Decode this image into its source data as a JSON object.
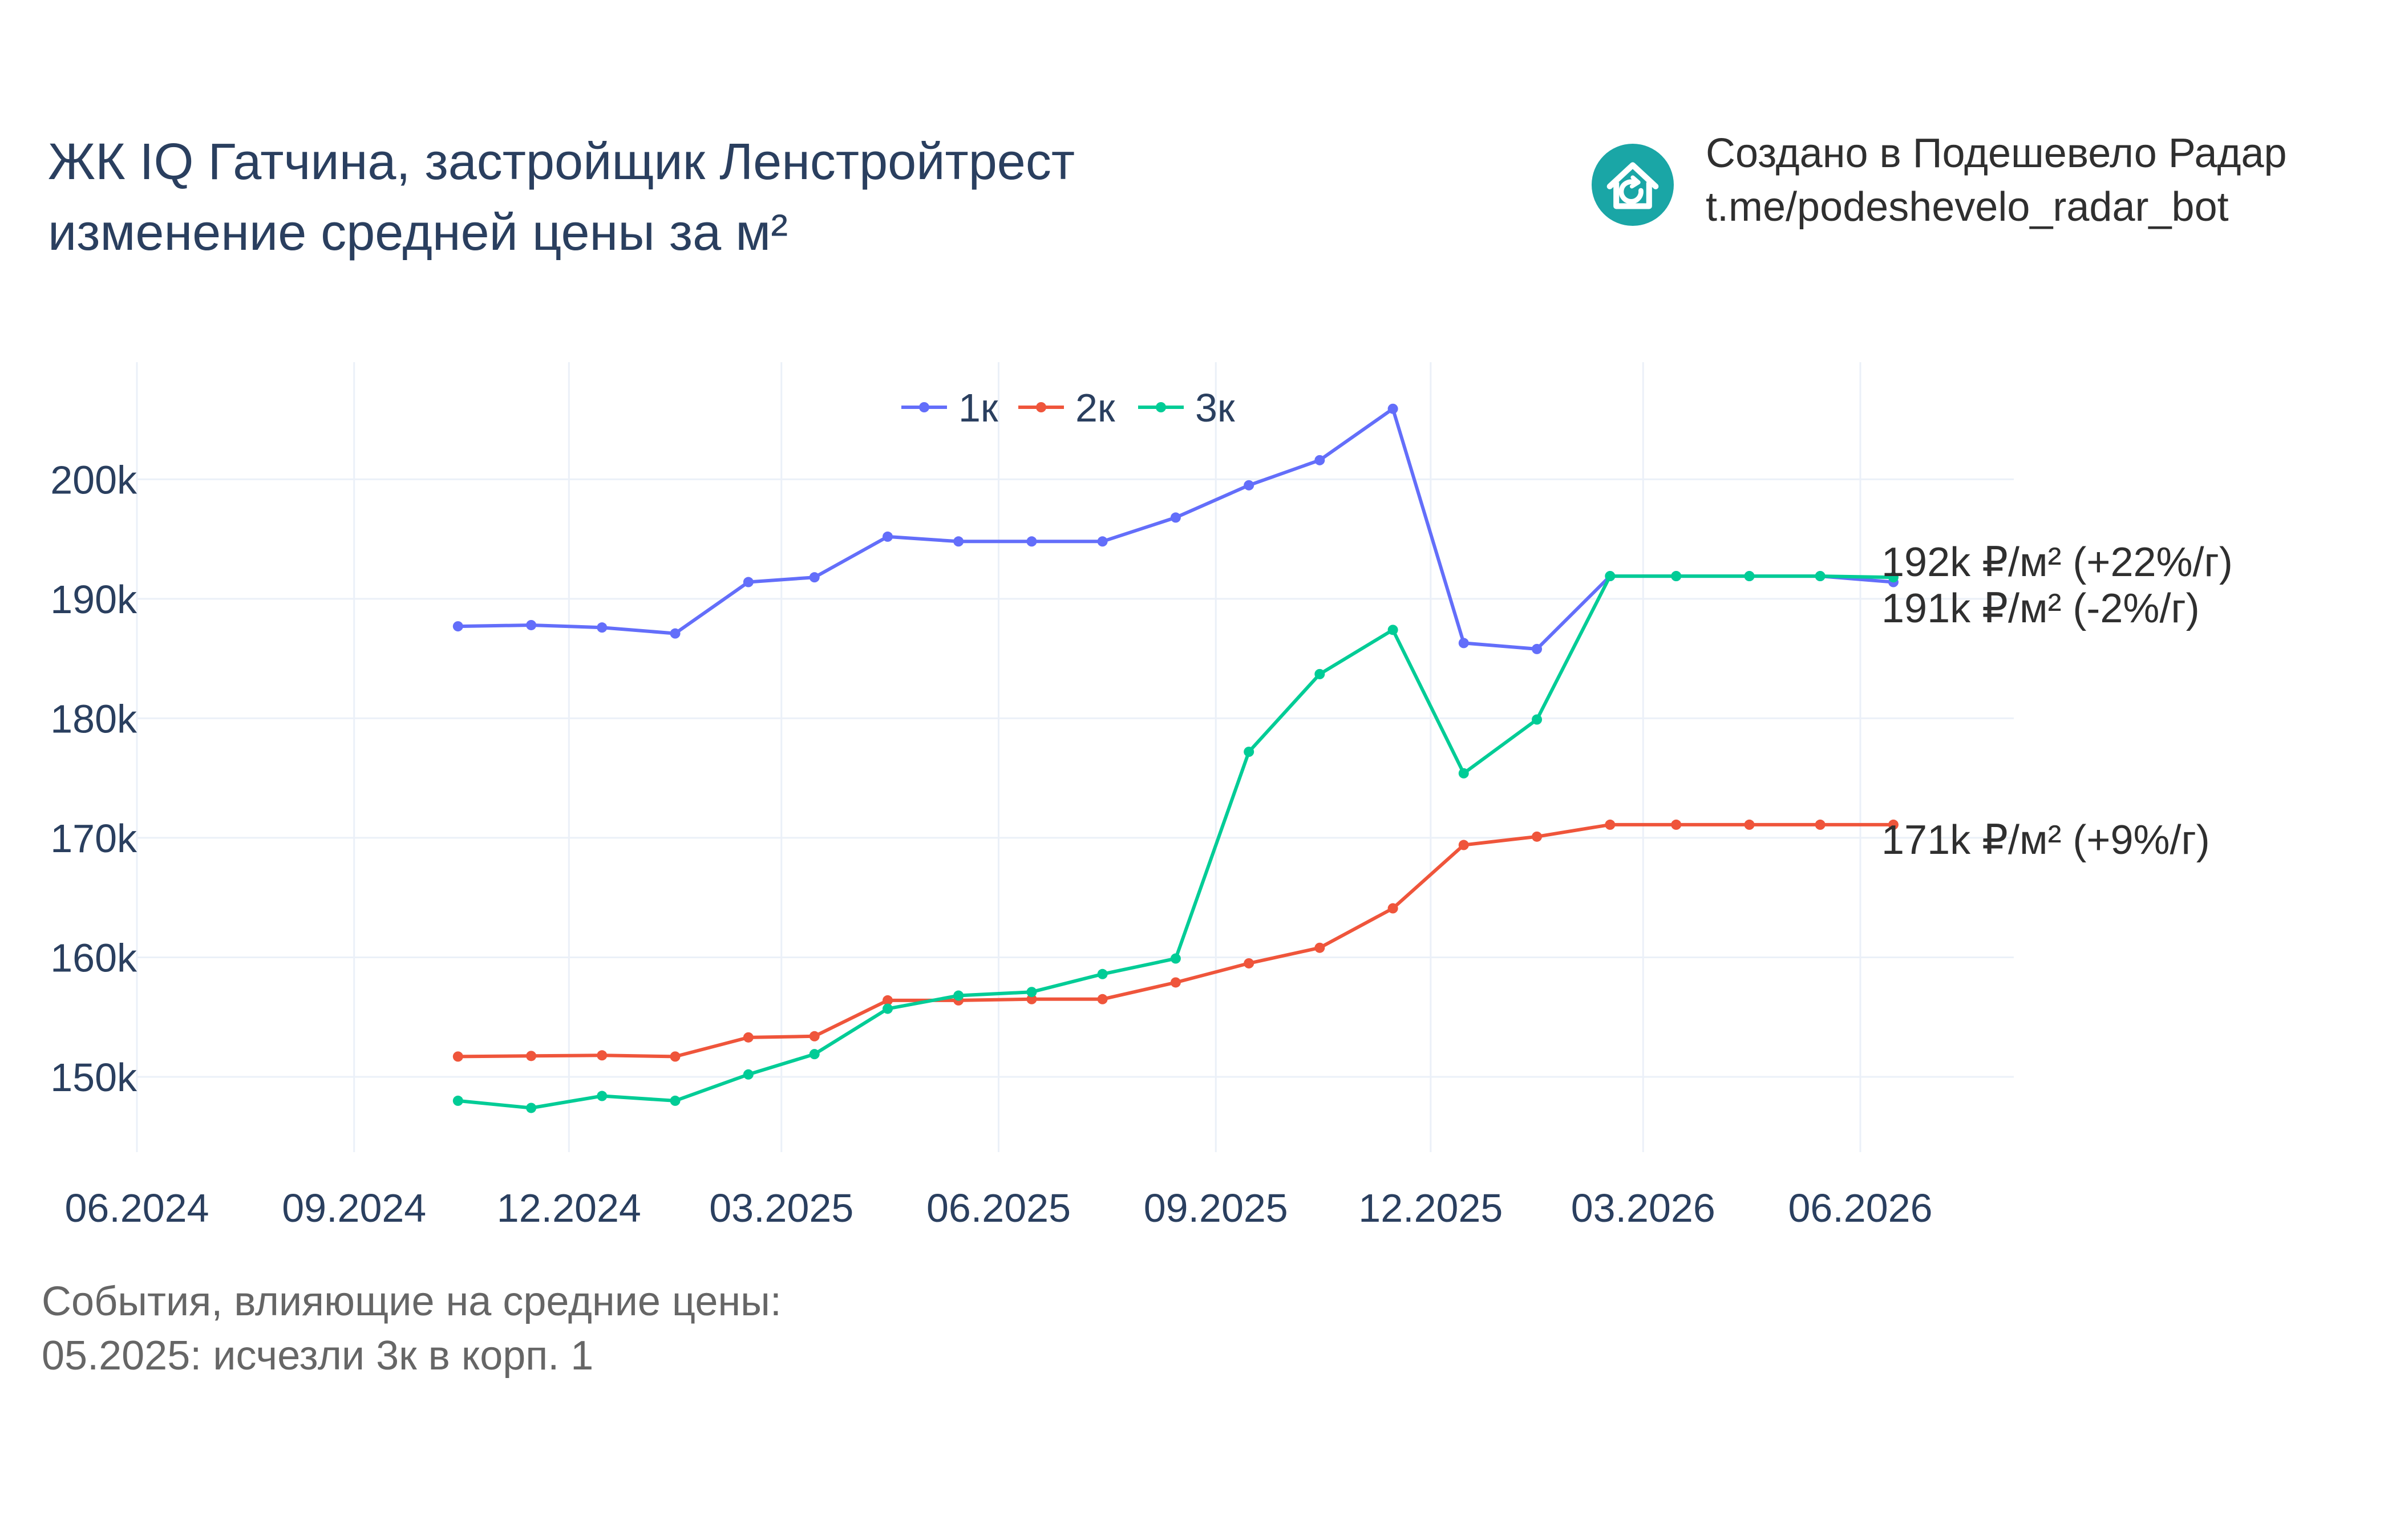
{
  "header": {
    "title_line1": "ЖК IQ Гатчина, застройщик Ленстройтрест",
    "title_line2": "изменение средней цены за м²"
  },
  "brand": {
    "logo_icon": "house-refresh-icon",
    "logo_color": "#1aa6a6",
    "line1": "Создано в Подешевело Радар",
    "line2": "t.me/podeshevelo_radar_bot"
  },
  "events": {
    "heading": "События, влияющие на средние цены:",
    "items": [
      "05.2025: исчезли 3к в корп. 1"
    ]
  },
  "chart_data": {
    "type": "line",
    "x": [
      "2024-10-15",
      "2024-11-15",
      "2024-12-15",
      "2025-01-15",
      "2025-02-15",
      "2025-03-15",
      "2025-04-15",
      "2025-05-15",
      "2025-06-15",
      "2025-07-15",
      "2025-08-15",
      "2025-09-15",
      "2025-10-15",
      "2025-11-15",
      "2025-12-15",
      "2026-01-15",
      "2026-02-15",
      "2026-03-15",
      "2026-04-15",
      "2026-05-15",
      "2026-06-15"
    ],
    "x_ticks": [
      "06.2024",
      "09.2024",
      "12.2024",
      "03.2025",
      "06.2025",
      "09.2025",
      "12.2025",
      "03.2026",
      "06.2026"
    ],
    "x_tick_dates": [
      "2024-06-01",
      "2024-09-01",
      "2024-12-01",
      "2025-03-01",
      "2025-06-01",
      "2025-09-01",
      "2025-12-01",
      "2026-03-01",
      "2026-06-01"
    ],
    "xlim": [
      "2024-06-01",
      "2026-08-05"
    ],
    "y_ticks": [
      "150k",
      "160k",
      "170k",
      "180k",
      "190k",
      "200k"
    ],
    "y_tick_values": [
      150000,
      160000,
      170000,
      180000,
      190000,
      200000
    ],
    "ylim": [
      143700,
      209800
    ],
    "grid": true,
    "legend_position": "top-center",
    "series": [
      {
        "name": "1к",
        "color": "#636efa",
        "values": [
          187700,
          187800,
          187600,
          187100,
          191400,
          191800,
          195200,
          194800,
          194800,
          194800,
          196800,
          199500,
          201600,
          205900,
          186300,
          185800,
          191900,
          191900,
          191900,
          191900,
          191400
        ],
        "end_label": "191k ₽/м² (-2%/г)"
      },
      {
        "name": "2к",
        "color": "#ef553b",
        "values": [
          151700,
          151750,
          151800,
          151700,
          153300,
          153400,
          156400,
          156400,
          156500,
          156500,
          157900,
          159500,
          160800,
          164100,
          169400,
          170100,
          171100,
          171100,
          171100,
          171100,
          171100
        ],
        "end_label": "171k ₽/м² (+9%/г)"
      },
      {
        "name": "3к",
        "color": "#00cc96",
        "values": [
          148000,
          147400,
          148400,
          148000,
          150200,
          151900,
          155700,
          156800,
          157100,
          158600,
          159900,
          177200,
          183700,
          187400,
          175400,
          179900,
          191900,
          191900,
          191900,
          191900,
          191800
        ],
        "end_label": "192k ₽/м² (+22%/г)"
      }
    ]
  }
}
